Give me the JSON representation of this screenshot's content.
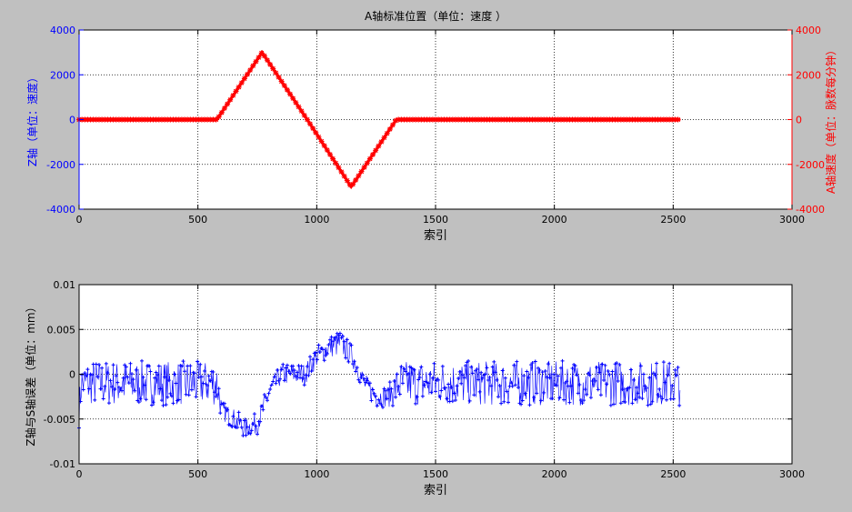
{
  "chart_data": [
    {
      "type": "line",
      "title": "A轴标准位置（单位：速度  ）",
      "xlabel": "索引",
      "ylabel_left": "Z轴（单位：速度）",
      "ylabel_right": "A轴速度（单位：脉数每分钟）",
      "xlim": [
        0,
        3000
      ],
      "ylim_left": [
        -4000,
        4000
      ],
      "ylim_right": [
        -4000,
        4000
      ],
      "xticks": [
        "0",
        "500",
        "1000",
        "1500",
        "2000",
        "2500",
        "3000"
      ],
      "yticks_left": [
        "4000",
        "2000",
        "0",
        "-2000",
        "-4000"
      ],
      "yticks_right": [
        "4000",
        "2000",
        "0",
        "-2000",
        "-4000"
      ],
      "grid": true,
      "colors": {
        "left_axis": "#0000ff",
        "right_axis": "#ff0000"
      },
      "series": [
        {
          "axis": "right",
          "color": "#ff0000",
          "marker": "*",
          "x": [
            0,
            580,
            770,
            960,
            1145,
            1335,
            2530
          ],
          "y": [
            0,
            0,
            3000,
            0,
            -3000,
            0,
            0
          ]
        }
      ]
    },
    {
      "type": "scatter",
      "xlabel": "索引",
      "ylabel": "Z轴与S轴误差（单位：mm）",
      "xlim": [
        0,
        3000
      ],
      "ylim": [
        -0.01,
        0.01
      ],
      "xticks": [
        "0",
        "500",
        "1000",
        "1500",
        "2000",
        "2500",
        "3000"
      ],
      "yticks": [
        "0.01",
        "0.005",
        "0",
        "-0.005",
        "-0.01"
      ],
      "grid": true,
      "colors": {
        "axis": "#000000"
      },
      "series": [
        {
          "color": "#0000ff",
          "marker": "+",
          "x": [
            0,
            10,
            40,
            580,
            600,
            650,
            700,
            750,
            800,
            850,
            900,
            950,
            1000,
            1050,
            1100,
            1150,
            1200,
            1250,
            1300,
            1350,
            1400,
            2530
          ],
          "center": [
            -0.004,
            -0.001,
            -0.001,
            -0.001,
            -0.004,
            -0.005,
            -0.006,
            -0.0055,
            -0.002,
            0.0,
            0.0,
            0.0,
            0.002,
            0.003,
            0.0035,
            0.002,
            -0.001,
            -0.0025,
            -0.0025,
            -0.001,
            -0.001,
            -0.001
          ],
          "spread": [
            0.002,
            0.002,
            0.0025,
            0.0025,
            0.001,
            0.0012,
            0.0012,
            0.0012,
            0.0012,
            0.0012,
            0.0012,
            0.0012,
            0.0012,
            0.0012,
            0.0015,
            0.0012,
            0.0012,
            0.0012,
            0.0012,
            0.0025,
            0.0025,
            0.0025
          ]
        }
      ]
    }
  ]
}
